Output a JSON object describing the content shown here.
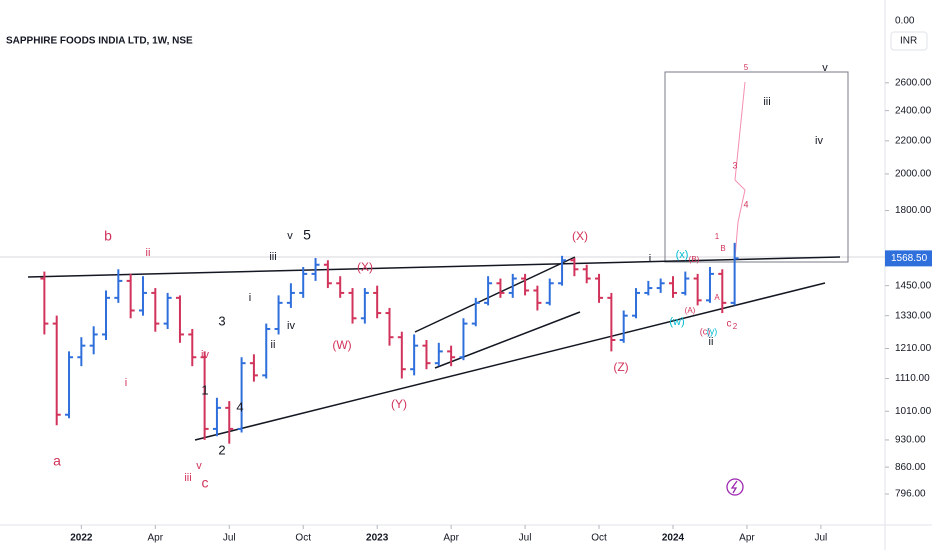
{
  "chart_data": {
    "type": "ohlc",
    "title": "SAPPHIRE FOODS INDIA LTD, 1W, NSE",
    "currency": "INR",
    "top_label": "0.00",
    "last_price_label": "1568.50",
    "log_scale": true,
    "grid": false,
    "up_color": "#2f6fdc",
    "down_color": "#d1335b",
    "xlim": [
      -3.3,
      32.6
    ],
    "xticks": [
      {
        "value": 0,
        "label": "2022"
      },
      {
        "value": 3,
        "label": "Apr"
      },
      {
        "value": 6,
        "label": "Jul"
      },
      {
        "value": 9,
        "label": "Oct"
      },
      {
        "value": 12,
        "label": "2023"
      },
      {
        "value": 15,
        "label": "Apr"
      },
      {
        "value": 18,
        "label": "Jul"
      },
      {
        "value": 21,
        "label": "Oct"
      },
      {
        "value": 24,
        "label": "2024"
      },
      {
        "value": 27,
        "label": "Apr"
      },
      {
        "value": 30,
        "label": "Jul"
      }
    ],
    "ylim": [
      728,
      3300
    ],
    "yticks": [
      {
        "value": 796,
        "label": "796.00"
      },
      {
        "value": 860,
        "label": "860.00"
      },
      {
        "value": 930,
        "label": "930.00"
      },
      {
        "value": 1010,
        "label": "1010.00"
      },
      {
        "value": 1110,
        "label": "1110.00"
      },
      {
        "value": 1210,
        "label": "1210.00"
      },
      {
        "value": 1330,
        "label": "1330.00"
      },
      {
        "value": 1450,
        "label": "1450.00"
      },
      {
        "value": 1800,
        "label": "1800.00"
      },
      {
        "value": 2000,
        "label": "2000.00"
      },
      {
        "value": 2200,
        "label": "2200.00"
      },
      {
        "value": 2400,
        "label": "2400.00"
      },
      {
        "value": 2600,
        "label": "2600.00"
      }
    ],
    "x": [
      -1.5,
      -1,
      -0.5,
      0,
      0.5,
      1,
      1.5,
      2,
      2.5,
      3,
      3.5,
      4,
      4.5,
      5,
      5.5,
      6,
      6.5,
      7,
      7.5,
      8,
      8.5,
      9,
      9.5,
      10,
      10.5,
      11,
      11.5,
      12,
      12.5,
      13,
      13.5,
      14,
      14.5,
      15,
      15.5,
      16,
      16.5,
      17,
      17.5,
      18,
      18.5,
      19,
      19.5,
      20,
      20.5,
      21,
      21.5,
      22,
      22.5,
      23,
      23.5,
      24,
      24.5,
      25,
      25.5,
      26,
      26.5
    ],
    "open": [
      1480,
      1300,
      1000,
      1180,
      1220,
      1260,
      1400,
      1470,
      1350,
      1420,
      1300,
      1400,
      1260,
      1180,
      960,
      1020,
      960,
      1160,
      1120,
      1280,
      1380,
      1420,
      1500,
      1540,
      1460,
      1420,
      1320,
      1420,
      1340,
      1250,
      1140,
      1220,
      1160,
      1200,
      1180,
      1300,
      1380,
      1460,
      1420,
      1480,
      1430,
      1380,
      1460,
      1560,
      1520,
      1480,
      1400,
      1240,
      1330,
      1420,
      1440,
      1460,
      1420,
      1480,
      1390,
      1500,
      1380
    ],
    "high": [
      1510,
      1330,
      1200,
      1250,
      1290,
      1430,
      1520,
      1500,
      1490,
      1440,
      1420,
      1410,
      1280,
      1200,
      1050,
      1040,
      1180,
      1190,
      1300,
      1410,
      1460,
      1530,
      1570,
      1560,
      1490,
      1440,
      1440,
      1450,
      1360,
      1270,
      1260,
      1240,
      1230,
      1220,
      1320,
      1400,
      1490,
      1480,
      1500,
      1500,
      1450,
      1480,
      1580,
      1570,
      1540,
      1500,
      1420,
      1350,
      1440,
      1470,
      1480,
      1490,
      1510,
      1500,
      1530,
      1520,
      1640
    ],
    "low": [
      1260,
      970,
      990,
      1150,
      1190,
      1240,
      1380,
      1320,
      1330,
      1270,
      1280,
      1230,
      1150,
      930,
      940,
      920,
      950,
      1100,
      1110,
      1260,
      1360,
      1400,
      1470,
      1440,
      1400,
      1300,
      1300,
      1320,
      1220,
      1110,
      1120,
      1140,
      1150,
      1150,
      1170,
      1290,
      1370,
      1400,
      1400,
      1410,
      1350,
      1370,
      1450,
      1490,
      1460,
      1380,
      1200,
      1230,
      1320,
      1410,
      1420,
      1400,
      1410,
      1370,
      1380,
      1340,
      1370
    ],
    "close": [
      1300,
      1000,
      1180,
      1220,
      1260,
      1400,
      1470,
      1350,
      1420,
      1300,
      1400,
      1260,
      1180,
      960,
      1020,
      960,
      1160,
      1120,
      1280,
      1380,
      1420,
      1500,
      1540,
      1460,
      1420,
      1320,
      1420,
      1340,
      1250,
      1140,
      1220,
      1160,
      1200,
      1180,
      1300,
      1380,
      1460,
      1420,
      1480,
      1430,
      1380,
      1460,
      1560,
      1520,
      1480,
      1400,
      1240,
      1330,
      1420,
      1440,
      1460,
      1420,
      1480,
      1390,
      1500,
      1380,
      1568.5
    ],
    "annotations": [
      "b",
      "ii",
      "a",
      "i",
      "iv",
      "iii",
      "v",
      "c",
      "1",
      "2",
      "3",
      "4",
      "i",
      "ii",
      "iv",
      "iii",
      "v",
      "5",
      "(X)",
      "(W)",
      "(Y)",
      "(X)",
      "(Z)",
      "i",
      "(x)",
      "(B)",
      "(w)",
      "(A)",
      "A",
      "B",
      "1",
      "(c)",
      "(y)",
      "ii",
      "c",
      "2",
      "3",
      "4",
      "5",
      "iii",
      "iv",
      "v"
    ]
  }
}
